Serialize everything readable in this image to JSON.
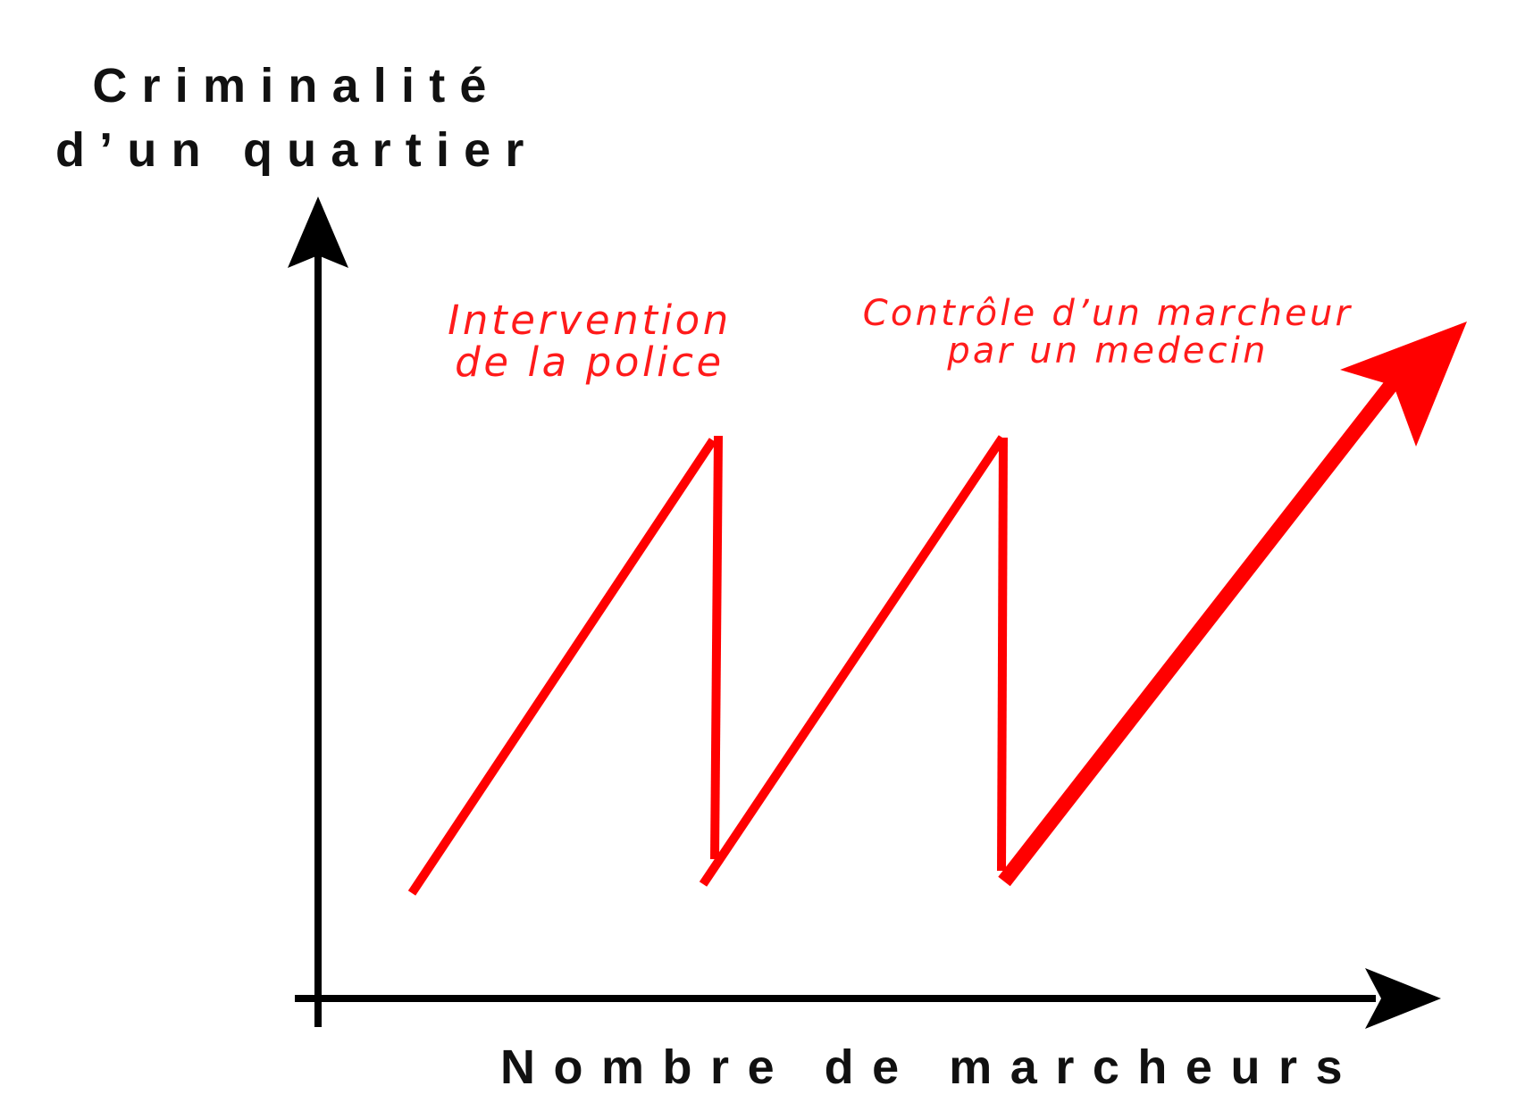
{
  "diagram": {
    "y_axis": {
      "title_lines": [
        "Criminalité",
        "d’un quartier"
      ]
    },
    "x_axis": {
      "title": "Nombre de marcheurs"
    },
    "annotations": {
      "police": {
        "lines": [
          "Intervention",
          "de la police"
        ]
      },
      "doctor": {
        "lines": [
          "Contrôle d’un marcheur",
          "par un medecin"
        ]
      }
    },
    "colors": {
      "axis": "#000000",
      "curve": "#ff0000",
      "annotation": "#ff1b1b"
    }
  }
}
